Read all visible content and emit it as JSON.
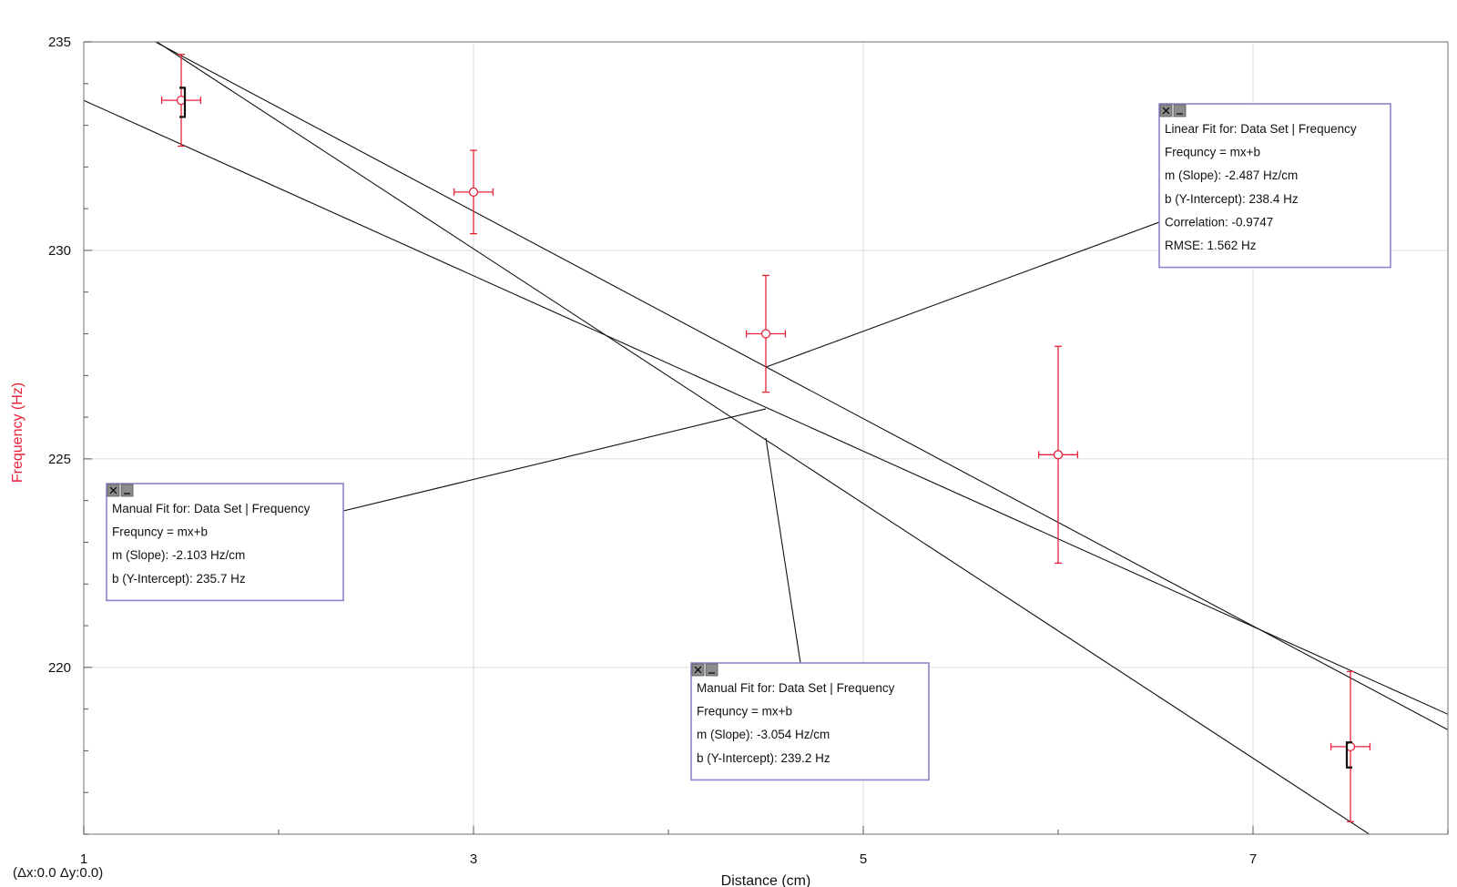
{
  "chart_data": {
    "type": "scatter",
    "xlabel": "Distance (cm)",
    "ylabel": "Frequency (Hz)",
    "xlim": [
      1,
      8
    ],
    "ylim": [
      216,
      235
    ],
    "x_ticks": [
      1,
      3,
      5,
      7
    ],
    "y_ticks": [
      235,
      230,
      225,
      220
    ],
    "x_minor_step": 1,
    "y_minor_step": 1,
    "grid": true,
    "colors": {
      "data": "#e8223a",
      "ylabel": "#e8223a",
      "fit_line": "#111111",
      "box_border": "#8a86c8",
      "plot_border": "#888888",
      "grid": "#dddddd"
    },
    "series": [
      {
        "points": [
          {
            "x": 1.5,
            "y": 233.6,
            "xerr": 0.1,
            "yerr": 1.1
          },
          {
            "x": 3.0,
            "y": 231.4,
            "xerr": 0.1,
            "yerr": 1.0
          },
          {
            "x": 4.5,
            "y": 228.0,
            "xerr": 0.1,
            "yerr": 1.4
          },
          {
            "x": 6.0,
            "y": 225.1,
            "xerr": 0.1,
            "yerr": 2.6
          },
          {
            "x": 7.5,
            "y": 218.1,
            "xerr": 0.1,
            "yerr": 1.8
          }
        ]
      }
    ],
    "fits": [
      {
        "id": "linear",
        "slope": -2.487,
        "intercept": 238.4
      },
      {
        "id": "manual-1",
        "slope": -2.103,
        "intercept": 235.7
      },
      {
        "id": "manual-2",
        "slope": -3.054,
        "intercept": 239.2
      }
    ],
    "annotations": [
      {
        "id": "linear",
        "anchor": {
          "x": 4.5,
          "y": 227.2
        },
        "lines": [
          "Linear Fit for: Data Set | Frequency",
          "Frequncy = mx+b",
          "m (Slope): -2.487 Hz/cm",
          "b (Y-Intercept): 238.4 Hz",
          "Correlation: -0.9747",
          "RMSE: 1.562 Hz"
        ]
      },
      {
        "id": "manual-1",
        "anchor": {
          "x": 4.5,
          "y": 226.2
        },
        "lines": [
          "Manual Fit for: Data Set | Frequency",
          "Frequncy = mx+b",
          "m (Slope): -2.103 Hz/cm",
          "b (Y-Intercept): 235.7 Hz"
        ]
      },
      {
        "id": "manual-2",
        "anchor": {
          "x": 4.5,
          "y": 225.5
        },
        "lines": [
          "Manual Fit for: Data Set | Frequency",
          "Frequncy = mx+b",
          "m (Slope): -3.054 Hz/cm",
          "b (Y-Intercept): 239.2 Hz"
        ]
      }
    ],
    "brackets": [
      {
        "x": 1.5,
        "y_low": 233.2,
        "y_high": 233.9,
        "side": "right"
      },
      {
        "x": 7.5,
        "y_low": 217.6,
        "y_high": 218.2,
        "side": "left"
      }
    ]
  },
  "readout": "(Δx:0.0 Δy:0.0)"
}
